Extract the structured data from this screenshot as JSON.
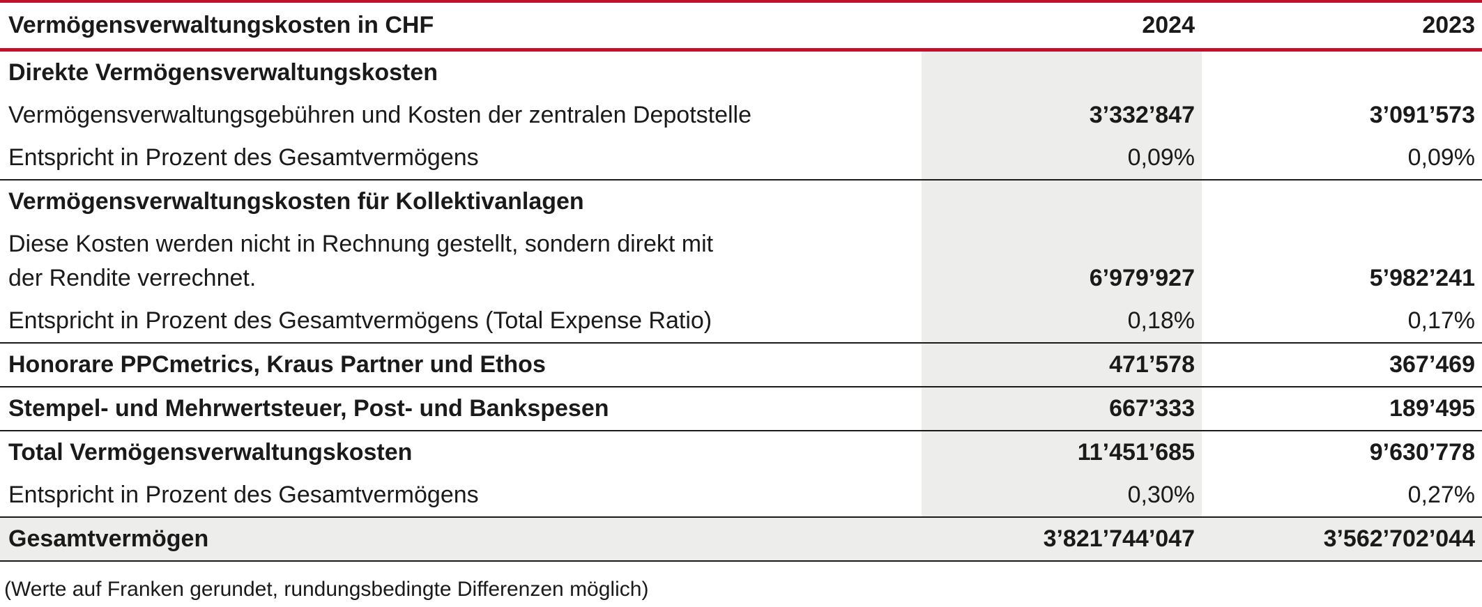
{
  "table": {
    "header": {
      "title": "Vermögensverwaltungskosten in CHF",
      "year_1": "2024",
      "year_2": "2023"
    },
    "rows": [
      {
        "type": "section",
        "label": "Direkte Vermögensverwaltungskosten",
        "v2024": "",
        "v2023": ""
      },
      {
        "type": "bold-num",
        "label": "Vermögensverwaltungsgebühren und Kosten der zentralen Depotstelle",
        "v2024": "3’332’847",
        "v2023": "3’091’573"
      },
      {
        "type": "plain",
        "label": "Entspricht in Prozent des Gesamtvermögens",
        "v2024": "0,09%",
        "v2023": "0,09%"
      },
      {
        "type": "section",
        "label": "Vermögensverwaltungskosten für Kollektivanlagen",
        "v2024": "",
        "v2023": ""
      },
      {
        "type": "bold-num-multi",
        "label_line_1": "Diese Kosten werden nicht in Rechnung gestellt, sondern direkt mit",
        "label_line_2": "der Rendite verrechnet.",
        "v2024": "6’979’927",
        "v2023": "5’982’241"
      },
      {
        "type": "plain",
        "label": "Entspricht in Prozent des Gesamtvermögens (Total Expense Ratio)",
        "v2024": "0,18%",
        "v2023": "0,17%"
      },
      {
        "type": "bold",
        "label": "Honorare PPCmetrics, Kraus Partner und Ethos",
        "v2024": "471’578",
        "v2023": "367’469"
      },
      {
        "type": "bold",
        "label": "Stempel- und Mehrwertsteuer, Post- und Bankspesen",
        "v2024": "667’333",
        "v2023": "189’495"
      },
      {
        "type": "bold",
        "label": "Total Vermögensverwaltungskosten",
        "v2024": "11’451’685",
        "v2023": "9’630’778"
      },
      {
        "type": "plain",
        "label": "Entspricht in Prozent des Gesamtvermögens",
        "v2024": "0,30%",
        "v2023": "0,27%"
      },
      {
        "type": "total",
        "label": "Gesamtvermögen",
        "v2024": "3’821’744’047",
        "v2023": "3’562’702’044"
      }
    ]
  },
  "footnote": "(Werte auf Franken gerundet, rundungsbedingte Differenzen möglich)",
  "colors": {
    "accent_red": "#c0102b",
    "shade_gray": "#ededeb",
    "text": "#1a1a1a"
  }
}
